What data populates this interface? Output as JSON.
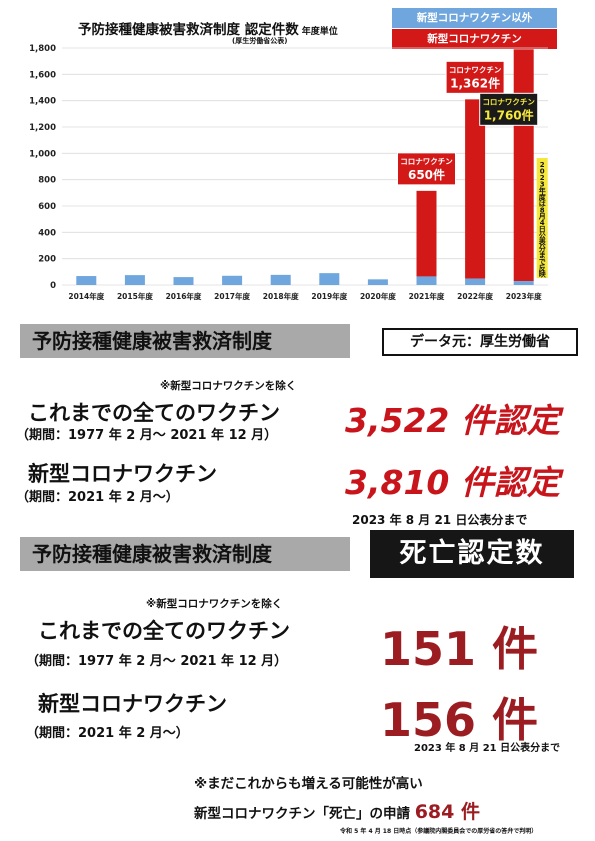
{
  "chart_header": {
    "title": "予防接種健康被害救済制度 認定件数",
    "unit": "年度単位",
    "subtitle": "(厚生労働省公表)"
  },
  "colors": {
    "other_vaccine": "#6fa6dd",
    "covid_vaccine": "#d31918",
    "callout_red": "#d31918",
    "callout_dark": "#1a1a1a",
    "callout_yellow": "#f6e83a"
  },
  "chart_data": {
    "type": "bar",
    "stacked": true,
    "title": "予防接種健康被害救済制度 認定件数",
    "categories": [
      "2014年度",
      "2015年度",
      "2016年度",
      "2017年度",
      "2018年度",
      "2019年度",
      "2020年度",
      "2021年度",
      "2022年度",
      "2023年度"
    ],
    "series": [
      {
        "name": "新型コロナワクチン以外",
        "values": [
          68,
          75,
          60,
          70,
          77,
          90,
          43,
          65,
          48,
          30
        ]
      },
      {
        "name": "新型コロナワクチン",
        "values": [
          0,
          0,
          0,
          0,
          0,
          0,
          0,
          650,
          1362,
          1760
        ]
      }
    ],
    "ylim": [
      0,
      1800
    ],
    "yticks": [
      0,
      200,
      400,
      600,
      800,
      1000,
      1200,
      1400,
      1600,
      1800
    ],
    "ytick_labels": [
      "0",
      "200",
      "400",
      "600",
      "800",
      "1,000",
      "1,200",
      "1,400",
      "1,600",
      "1,800"
    ],
    "grid": true,
    "legend": "top-right",
    "annotations": [
      {
        "category": "2021年度",
        "label": "コロナワクチン",
        "value_text": "650件",
        "style": "red"
      },
      {
        "category": "2022年度",
        "label": "コロナワクチン",
        "value_text": "1,362件",
        "style": "red"
      },
      {
        "category": "2023年度",
        "label": "コロナワクチン",
        "value_text": "1,760件",
        "style": "dark"
      }
    ],
    "side_note": "2023年度は8月4日公表分まで反映"
  },
  "section1": {
    "header": "予防接種健康被害救済制度",
    "source": "データ元：厚生労働省",
    "note": "※新型コロナワクチンを除く",
    "row1_label": "これまでの全てのワクチン",
    "row1_period": "（期間：1977 年 2 月～ 2021 年 12 月）",
    "row1_count": "3,522 件認定",
    "row2_label": "新型コロナワクチン",
    "row2_period": "（期間：2021 年 2 月～）",
    "row2_count": "3,810 件認定",
    "published": "2023 年 8 月 21 日公表分まで"
  },
  "section2": {
    "header": "予防接種健康被害救済制度",
    "badge": "死亡認定数",
    "note": "※新型コロナワクチンを除く",
    "row1_label": "これまでの全てのワクチン",
    "row1_period": "（期間：1977 年 2 月～ 2021 年 12 月）",
    "row1_count": "151 件",
    "row2_label": "新型コロナワクチン",
    "row2_period": "（期間：2021 年 2 月～）",
    "row2_count": "156 件",
    "published": "2023 年 8 月 21 日公表分まで"
  },
  "footer": {
    "line1": "※まだこれからも増える可能性が高い",
    "line2": "新型コロナワクチン「死亡」の申請",
    "count": "684 件",
    "footnote": "令和 5 年 4 月 18 日時点（参議院内閣委員会での厚労省の答弁で判明）"
  }
}
